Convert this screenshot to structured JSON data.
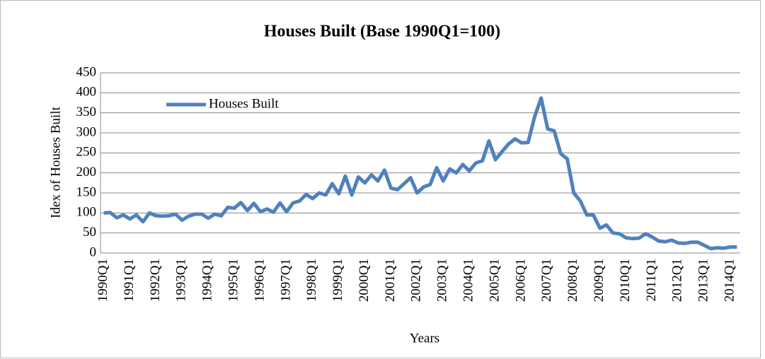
{
  "chart_data": {
    "type": "line",
    "title": "Houses Built (Base 1990Q1=100)",
    "x_label": "Years",
    "y_label": "Idex of Houses Built",
    "categories": [
      "1990Q1",
      null,
      null,
      null,
      "1991Q1",
      null,
      null,
      null,
      "1992Q1",
      null,
      null,
      null,
      "1993Q1",
      null,
      null,
      null,
      "1994Q1",
      null,
      null,
      null,
      "1995Q1",
      null,
      null,
      null,
      "1996Q1",
      null,
      null,
      null,
      "1997Q1",
      null,
      null,
      null,
      "1998Q1",
      null,
      null,
      null,
      "1999Q1",
      null,
      null,
      null,
      "2000Q1",
      null,
      null,
      null,
      "2001Q1",
      null,
      null,
      null,
      "2002Q1",
      null,
      null,
      null,
      "2003Q1",
      null,
      null,
      null,
      "2004Q1",
      null,
      null,
      null,
      "2005Q1",
      null,
      null,
      null,
      "2006Q1",
      null,
      null,
      null,
      "2007Q1",
      null,
      null,
      null,
      "2008Q1",
      null,
      null,
      null,
      "2009Q1",
      null,
      null,
      null,
      "2010Q1",
      null,
      null,
      null,
      "2011Q1",
      null,
      null,
      null,
      "2012Q1",
      null,
      null,
      null,
      "2013Q1",
      null,
      null,
      null,
      "2014Q1",
      null
    ],
    "series": [
      {
        "name": "Houses Built",
        "color": "#4f81bd",
        "values": [
          100,
          101,
          88,
          95,
          85,
          95,
          78,
          100,
          93,
          92,
          93,
          97,
          82,
          92,
          97,
          97,
          87,
          97,
          93,
          114,
          112,
          126,
          106,
          124,
          103,
          110,
          102,
          125,
          103,
          125,
          130,
          146,
          136,
          150,
          145,
          173,
          148,
          192,
          145,
          190,
          175,
          195,
          180,
          207,
          162,
          158,
          173,
          188,
          150,
          165,
          171,
          213,
          180,
          210,
          200,
          221,
          205,
          225,
          230,
          280,
          233,
          253,
          272,
          285,
          275,
          276,
          340,
          387,
          310,
          305,
          248,
          235,
          150,
          130,
          95,
          95,
          62,
          70,
          50,
          48,
          38,
          36,
          37,
          48,
          40,
          30,
          28,
          32,
          25,
          24,
          27,
          27,
          19,
          11,
          13,
          12,
          15,
          15
        ]
      }
    ],
    "ylim": [
      0,
      450
    ],
    "yticks": [
      0,
      50,
      100,
      150,
      200,
      250,
      300,
      350,
      400,
      450
    ],
    "grid": true,
    "legend": "upper left"
  }
}
